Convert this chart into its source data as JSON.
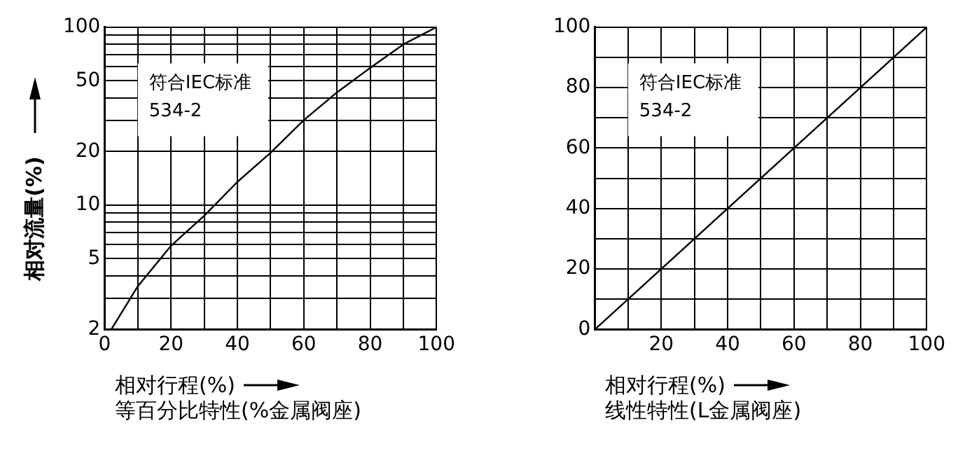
{
  "chart_data": [
    {
      "type": "line",
      "xlabel": "相对行程(%)",
      "subtitle": "等百分比特性(%金属阀座)",
      "ylabel": "相对流量(%)",
      "annotations": [
        "符合IEC标准\n534-2"
      ],
      "x": [
        2,
        10,
        20,
        30,
        40,
        50,
        60,
        70,
        80,
        90,
        100
      ],
      "log": "y",
      "series": [
        {
          "color": "#000000",
          "values": [
            2,
            3.5,
            5.9,
            8.7,
            13.5,
            19.7,
            30,
            43,
            59,
            80,
            100
          ]
        }
      ],
      "xlim": [
        0,
        100
      ],
      "xticks": [
        0,
        {
          "value": 10,
          "label": null
        },
        20,
        {
          "value": 30,
          "label": null
        },
        40,
        {
          "value": 50,
          "label": null
        },
        60,
        {
          "value": 70,
          "label": null
        },
        80,
        {
          "value": 90,
          "label": null
        },
        100
      ],
      "ylim": [
        2,
        100
      ],
      "yticks": [
        2,
        {
          "value": 3,
          "label": null
        },
        {
          "value": 4,
          "label": null
        },
        5,
        {
          "value": 6,
          "label": null
        },
        {
          "value": 7,
          "label": null
        },
        {
          "value": 8,
          "label": null
        },
        {
          "value": 9,
          "label": null
        },
        10,
        20,
        {
          "value": 30,
          "label": null
        },
        {
          "value": 40,
          "label": null
        },
        50,
        {
          "value": 60,
          "label": null
        },
        {
          "value": 70,
          "label": null
        },
        {
          "value": 80,
          "label": null
        },
        {
          "value": 90,
          "label": null
        },
        100
      ],
      "grid": true,
      "legend": false,
      "marker": "none",
      "line_style": "solid"
    },
    {
      "type": "line",
      "xlabel": "相对行程(%)",
      "subtitle": "线性特性(L金属阀座)",
      "annotations": [
        "符合IEC标准\n534-2"
      ],
      "x": [
        0,
        100
      ],
      "series": [
        {
          "color": "#000000",
          "values": [
            0,
            100
          ]
        }
      ],
      "xlim": [
        0,
        100
      ],
      "xticks": [
        {
          "value": 0,
          "label": null
        },
        {
          "value": 10,
          "label": null
        },
        20,
        {
          "value": 30,
          "label": null
        },
        40,
        {
          "value": 50,
          "label": null
        },
        60,
        {
          "value": 70,
          "label": null
        },
        80,
        {
          "value": 90,
          "label": null
        },
        100
      ],
      "ylim": [
        0,
        100
      ],
      "yticks": [
        0,
        {
          "value": 10,
          "label": null
        },
        20,
        {
          "value": 30,
          "label": null
        },
        40,
        {
          "value": 50,
          "label": null
        },
        60,
        {
          "value": 70,
          "label": null
        },
        80,
        {
          "value": 90,
          "label": null
        },
        100
      ],
      "grid": true,
      "legend": false,
      "marker": "none",
      "line_style": "solid"
    }
  ]
}
